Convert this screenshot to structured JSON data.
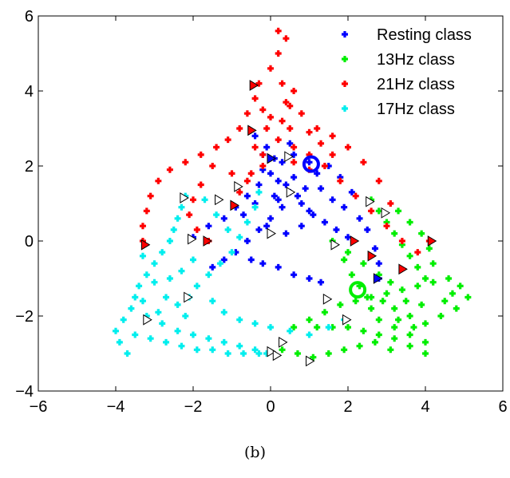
{
  "caption": "(b)",
  "chart_data": {
    "type": "scatter",
    "xlim": [
      -6,
      6
    ],
    "ylim": [
      -4,
      6
    ],
    "xticks": [
      -6,
      -4,
      -2,
      0,
      2,
      4,
      6
    ],
    "yticks": [
      -4,
      -2,
      0,
      2,
      4,
      6
    ],
    "xtick_labels": [
      "−6",
      "−4",
      "−2",
      "0",
      "2",
      "4",
      "6"
    ],
    "ytick_labels": [
      "−4",
      "−2",
      "0",
      "2",
      "4",
      "6"
    ],
    "grid": false,
    "legend_position": "top-right",
    "series": [
      {
        "name": "Resting class",
        "color": "#0000ff",
        "points": [
          [
            -2,
            0.1
          ],
          [
            -1.6,
            0.4
          ],
          [
            -1.2,
            0.6
          ],
          [
            -0.9,
            0.9
          ],
          [
            -0.6,
            1.2
          ],
          [
            -0.3,
            1.5
          ],
          [
            0,
            1.8
          ],
          [
            0.3,
            2.1
          ],
          [
            0.6,
            2.3
          ],
          [
            -0.4,
            2.8
          ],
          [
            -0.1,
            2.5
          ],
          [
            0.1,
            2.2
          ],
          [
            -0.2,
            1.9
          ],
          [
            0.2,
            1.6
          ],
          [
            0.5,
            1.3
          ],
          [
            0.8,
            1.0
          ],
          [
            1.1,
            0.7
          ],
          [
            1.4,
            0.5
          ],
          [
            1.7,
            0.3
          ],
          [
            2.0,
            0.1
          ],
          [
            0.3,
            0.9
          ],
          [
            0,
            0.6
          ],
          [
            -0.3,
            0.3
          ],
          [
            -0.6,
            0.0
          ],
          [
            -0.9,
            -0.3
          ],
          [
            -1.2,
            -0.5
          ],
          [
            -1.5,
            -0.7
          ],
          [
            -0.5,
            -0.5
          ],
          [
            -0.2,
            -0.6
          ],
          [
            0.2,
            -0.7
          ],
          [
            0.6,
            -0.9
          ],
          [
            1.0,
            -1.0
          ],
          [
            1.3,
            -1.1
          ],
          [
            0.9,
            1.4
          ],
          [
            1.2,
            1.8
          ],
          [
            1.5,
            2.0
          ],
          [
            1.8,
            1.7
          ],
          [
            2.1,
            1.3
          ],
          [
            1.9,
            0.9
          ],
          [
            1.6,
            1.1
          ],
          [
            1.3,
            1.4
          ],
          [
            0.6,
            1.7
          ],
          [
            0.2,
            1.1
          ],
          [
            -0.1,
            0.4
          ],
          [
            0.4,
            0.2
          ],
          [
            0.8,
            0.4
          ],
          [
            1.0,
            0.8
          ],
          [
            0.7,
            1.2
          ],
          [
            0.4,
            1.5
          ],
          [
            0.1,
            1.2
          ],
          [
            -0.4,
            1.0
          ],
          [
            -0.7,
            0.7
          ],
          [
            -0.2,
            2.3
          ],
          [
            0.5,
            2.6
          ],
          [
            1.0,
            2.1
          ],
          [
            2.3,
            0.6
          ],
          [
            2.5,
            0.3
          ],
          [
            2.7,
            -0.2
          ],
          [
            2.8,
            -0.6
          ],
          [
            2.8,
            -1.0
          ]
        ]
      },
      {
        "name": "13Hz class",
        "color": "#00ee00",
        "points": [
          [
            0.6,
            -2.3
          ],
          [
            1.0,
            -2.1
          ],
          [
            1.4,
            -1.9
          ],
          [
            1.8,
            -1.7
          ],
          [
            2.2,
            -1.6
          ],
          [
            2.6,
            -1.5
          ],
          [
            3.0,
            -1.4
          ],
          [
            3.4,
            -1.3
          ],
          [
            3.8,
            -1.2
          ],
          [
            4.2,
            -1.1
          ],
          [
            4.6,
            -1.0
          ],
          [
            4.9,
            -1.2
          ],
          [
            5.1,
            -1.5
          ],
          [
            4.8,
            -1.8
          ],
          [
            4.4,
            -2.0
          ],
          [
            4.0,
            -2.2
          ],
          [
            3.6,
            -2.0
          ],
          [
            3.2,
            -1.8
          ],
          [
            2.9,
            -1.6
          ],
          [
            2.6,
            -1.8
          ],
          [
            2.8,
            -2.1
          ],
          [
            3.2,
            -2.3
          ],
          [
            3.6,
            -2.5
          ],
          [
            4.0,
            -2.7
          ],
          [
            4.0,
            -3.0
          ],
          [
            3.6,
            -2.8
          ],
          [
            3.2,
            -2.6
          ],
          [
            2.8,
            -2.5
          ],
          [
            2.4,
            -2.4
          ],
          [
            2.0,
            -2.3
          ],
          [
            1.6,
            -2.3
          ],
          [
            1.2,
            -2.3
          ],
          [
            0.3,
            -2.9
          ],
          [
            0.7,
            -3.0
          ],
          [
            1.1,
            -3.1
          ],
          [
            1.5,
            -3.0
          ],
          [
            1.9,
            -2.9
          ],
          [
            2.3,
            -2.8
          ],
          [
            2.7,
            -2.7
          ],
          [
            3.1,
            -2.9
          ],
          [
            2.6,
            1.1
          ],
          [
            2.8,
            0.8
          ],
          [
            3.0,
            0.5
          ],
          [
            3.2,
            0.2
          ],
          [
            3.4,
            -0.1
          ],
          [
            3.6,
            -0.4
          ],
          [
            3.8,
            -0.7
          ],
          [
            4.0,
            -1.0
          ],
          [
            3.3,
            0.8
          ],
          [
            3.6,
            0.5
          ],
          [
            3.9,
            0.2
          ],
          [
            4.1,
            -0.2
          ],
          [
            4.2,
            -0.6
          ],
          [
            1.6,
            0.0
          ],
          [
            2.0,
            -0.3
          ],
          [
            2.4,
            -0.6
          ],
          [
            2.8,
            -0.9
          ],
          [
            3.1,
            -1.1
          ],
          [
            1.9,
            -0.5
          ],
          [
            2.1,
            -0.9
          ],
          [
            2.3,
            -1.2
          ],
          [
            2.5,
            -1.5
          ],
          [
            4.5,
            -1.6
          ],
          [
            4.7,
            -1.4
          ],
          [
            3.5,
            -1.6
          ],
          [
            3.9,
            -1.7
          ],
          [
            3.3,
            -2.1
          ],
          [
            3.7,
            -2.3
          ]
        ]
      },
      {
        "name": "21Hz class",
        "color": "#ff0000",
        "points": [
          [
            0.2,
            5.6
          ],
          [
            0.4,
            5.4
          ],
          [
            0.2,
            5.0
          ],
          [
            0.0,
            4.6
          ],
          [
            0.3,
            4.2
          ],
          [
            0.6,
            4.0
          ],
          [
            0.5,
            3.6
          ],
          [
            0.3,
            3.2
          ],
          [
            -0.3,
            4.2
          ],
          [
            -0.4,
            3.8
          ],
          [
            -0.6,
            3.4
          ],
          [
            -0.8,
            3.0
          ],
          [
            -1.1,
            2.7
          ],
          [
            -1.4,
            2.5
          ],
          [
            -1.8,
            2.3
          ],
          [
            -2.2,
            2.1
          ],
          [
            -2.6,
            1.9
          ],
          [
            -2.9,
            1.6
          ],
          [
            -3.1,
            1.2
          ],
          [
            -3.2,
            0.8
          ],
          [
            -3.3,
            0.4
          ],
          [
            -3.3,
            0.0
          ],
          [
            -0.1,
            3.0
          ],
          [
            0.2,
            2.7
          ],
          [
            0.6,
            2.5
          ],
          [
            1.0,
            2.3
          ],
          [
            1.4,
            2.0
          ],
          [
            1.8,
            1.6
          ],
          [
            2.2,
            1.2
          ],
          [
            2.6,
            0.8
          ],
          [
            3.0,
            0.4
          ],
          [
            3.4,
            0.0
          ],
          [
            3.8,
            -0.3
          ],
          [
            4.1,
            0.0
          ],
          [
            1.2,
            3.0
          ],
          [
            1.6,
            2.8
          ],
          [
            2.0,
            2.5
          ],
          [
            2.4,
            2.1
          ],
          [
            2.8,
            1.6
          ],
          [
            3.1,
            1.0
          ],
          [
            -1.5,
            2.0
          ],
          [
            -1.0,
            1.8
          ],
          [
            -0.6,
            1.6
          ],
          [
            -0.2,
            2.0
          ],
          [
            -1.8,
            1.5
          ],
          [
            -2.0,
            1.1
          ],
          [
            -2.1,
            0.7
          ],
          [
            -1.9,
            0.3
          ],
          [
            -1.6,
            0.0
          ],
          [
            -0.8,
            1.3
          ],
          [
            -0.5,
            1.8
          ],
          [
            -0.2,
            2.3
          ],
          [
            0.5,
            3.0
          ],
          [
            0.8,
            3.4
          ],
          [
            1.0,
            2.9
          ],
          [
            1.3,
            2.6
          ],
          [
            1.6,
            2.3
          ],
          [
            1.0,
            1.9
          ],
          [
            0.6,
            2.1
          ],
          [
            -0.4,
            2.5
          ],
          [
            0.0,
            3.3
          ],
          [
            0.4,
            3.7
          ],
          [
            -0.2,
            3.5
          ]
        ]
      },
      {
        "name": "17Hz class",
        "color": "#00eeee",
        "points": [
          [
            -3.7,
            -3.0
          ],
          [
            -3.9,
            -2.7
          ],
          [
            -4.0,
            -2.4
          ],
          [
            -3.8,
            -2.1
          ],
          [
            -3.6,
            -1.8
          ],
          [
            -3.5,
            -1.5
          ],
          [
            -3.4,
            -1.2
          ],
          [
            -3.2,
            -0.9
          ],
          [
            -3.0,
            -0.6
          ],
          [
            -2.8,
            -0.3
          ],
          [
            -2.6,
            0.0
          ],
          [
            -2.5,
            0.3
          ],
          [
            -2.4,
            0.6
          ],
          [
            -2.3,
            0.9
          ],
          [
            -2.2,
            1.2
          ],
          [
            -3.3,
            -0.4
          ],
          [
            -3.0,
            -1.1
          ],
          [
            -2.7,
            -1.5
          ],
          [
            -2.4,
            -1.7
          ],
          [
            -2.1,
            -1.5
          ],
          [
            -1.9,
            -1.2
          ],
          [
            -1.6,
            -0.9
          ],
          [
            -1.3,
            -0.6
          ],
          [
            -1.0,
            -0.3
          ],
          [
            -0.8,
            0.1
          ],
          [
            -0.6,
            0.5
          ],
          [
            -0.4,
            0.9
          ],
          [
            -0.3,
            1.3
          ],
          [
            -3.5,
            -2.5
          ],
          [
            -3.1,
            -2.6
          ],
          [
            -2.7,
            -2.7
          ],
          [
            -2.3,
            -2.8
          ],
          [
            -1.9,
            -2.9
          ],
          [
            -1.5,
            -2.9
          ],
          [
            -1.1,
            -3.0
          ],
          [
            -0.7,
            -3.0
          ],
          [
            -0.3,
            -3.0
          ],
          [
            -0.1,
            -3.0
          ],
          [
            -3.2,
            -2.0
          ],
          [
            -2.8,
            -2.2
          ],
          [
            -2.4,
            -2.4
          ],
          [
            -2.0,
            -2.5
          ],
          [
            -1.6,
            -2.6
          ],
          [
            -1.2,
            -2.7
          ],
          [
            -0.8,
            -2.8
          ],
          [
            -0.4,
            -2.9
          ],
          [
            -2.0,
            -0.5
          ],
          [
            -2.3,
            -0.8
          ],
          [
            -2.6,
            -1.0
          ],
          [
            -1.5,
            -1.6
          ],
          [
            -1.2,
            -1.9
          ],
          [
            -0.8,
            -2.1
          ],
          [
            -0.4,
            -2.2
          ],
          [
            0.0,
            -2.3
          ],
          [
            0.5,
            -2.4
          ],
          [
            1.0,
            -2.5
          ],
          [
            1.5,
            -2.3
          ],
          [
            1.9,
            -2.1
          ],
          [
            -1.7,
            1.1
          ],
          [
            -1.4,
            0.7
          ],
          [
            -1.1,
            0.3
          ],
          [
            -2.9,
            -1.9
          ],
          [
            -2.2,
            -2.0
          ],
          [
            -3.3,
            -1.6
          ]
        ]
      }
    ],
    "event_markers": [
      {
        "x": -0.45,
        "y": 4.15,
        "color": "#ff0000"
      },
      {
        "x": -0.5,
        "y": 2.95,
        "color": "#ff0000"
      },
      {
        "x": 0.0,
        "y": 2.2,
        "color": "#0000ff"
      },
      {
        "x": 0.45,
        "y": 2.25,
        "color": "#ffffff"
      },
      {
        "x": -0.85,
        "y": 1.45,
        "color": "#ffffff"
      },
      {
        "x": -1.35,
        "y": 1.1,
        "color": "#ffffff"
      },
      {
        "x": -0.95,
        "y": 0.95,
        "color": "#ff0000"
      },
      {
        "x": 0.5,
        "y": 1.3,
        "color": "#ffffff"
      },
      {
        "x": -2.25,
        "y": 1.15,
        "color": "#ffffff"
      },
      {
        "x": -3.25,
        "y": -0.1,
        "color": "#ff0000"
      },
      {
        "x": -2.05,
        "y": 0.05,
        "color": "#ffffff"
      },
      {
        "x": -1.65,
        "y": 0.0,
        "color": "#ff0000"
      },
      {
        "x": 0.0,
        "y": 0.2,
        "color": "#ffffff"
      },
      {
        "x": 2.55,
        "y": 1.05,
        "color": "#ffffff"
      },
      {
        "x": 2.95,
        "y": 0.75,
        "color": "#ffffff"
      },
      {
        "x": 4.15,
        "y": 0.0,
        "color": "#ff0000"
      },
      {
        "x": 2.15,
        "y": 0.0,
        "color": "#ff0000"
      },
      {
        "x": 1.65,
        "y": -0.1,
        "color": "#ffffff"
      },
      {
        "x": 2.6,
        "y": -0.4,
        "color": "#ff0000"
      },
      {
        "x": 2.75,
        "y": -1.0,
        "color": "#0000ff"
      },
      {
        "x": 3.4,
        "y": -0.75,
        "color": "#ff0000"
      },
      {
        "x": -2.15,
        "y": -1.5,
        "color": "#ffffff"
      },
      {
        "x": 1.45,
        "y": -1.55,
        "color": "#ffffff"
      },
      {
        "x": -3.2,
        "y": -2.1,
        "color": "#ffffff"
      },
      {
        "x": 1.95,
        "y": -2.1,
        "color": "#ffffff"
      },
      {
        "x": 0.3,
        "y": -2.7,
        "color": "#ffffff"
      },
      {
        "x": 0.0,
        "y": -2.95,
        "color": "#ffffff"
      },
      {
        "x": 0.15,
        "y": -3.05,
        "color": "#ffffff"
      },
      {
        "x": 1.0,
        "y": -3.2,
        "color": "#ffffff"
      }
    ],
    "rings": [
      {
        "x": 2.25,
        "y": -1.3,
        "color": "#00ee00"
      },
      {
        "x": 1.05,
        "y": 2.05,
        "color": "#0000ff"
      }
    ]
  }
}
